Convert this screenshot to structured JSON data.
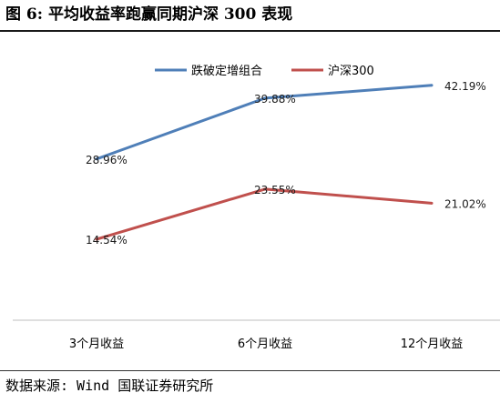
{
  "figure": {
    "title": "图 6: 平均收益率跑赢同期沪深 300 表现",
    "source": "数据来源: Wind 国联证券研究所"
  },
  "chart_data": {
    "type": "line",
    "categories": [
      "3个月收益",
      "6个月收益",
      "12个月收益"
    ],
    "series": [
      {
        "name": "跌破定增组合",
        "values": [
          28.96,
          39.88,
          42.19
        ],
        "labels": [
          "28.96%",
          "39.88%",
          "42.19%"
        ],
        "color": "#4f7fb8"
      },
      {
        "name": "沪深300",
        "values": [
          14.54,
          23.55,
          21.02
        ],
        "labels": [
          "14.54%",
          "23.55%",
          "21.02%"
        ],
        "color": "#c0504d"
      }
    ],
    "ylim": [
      0,
      50
    ],
    "grid": false,
    "legend": "top-center"
  }
}
